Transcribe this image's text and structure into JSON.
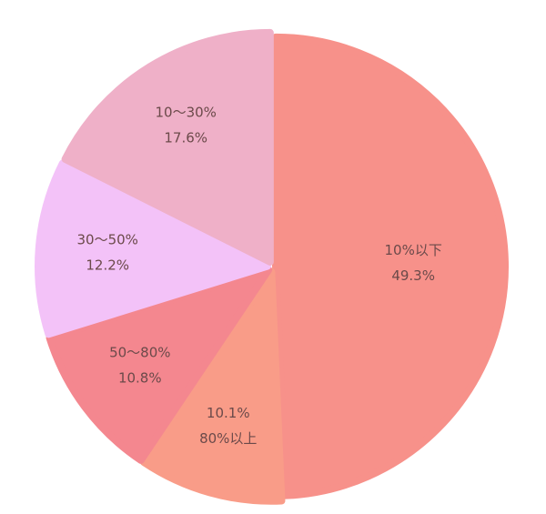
{
  "chart_data": {
    "type": "pie",
    "categories": [
      "10%以下",
      "80%以上",
      "50〜80%",
      "30〜50%",
      "10〜30%"
    ],
    "values": [
      49.3,
      10.1,
      10.8,
      12.2,
      17.6
    ],
    "value_labels": [
      "49.3%",
      "10.1%",
      "10.8%",
      "12.2%",
      "17.6%"
    ],
    "colors": [
      "#f7918a",
      "#f99c88",
      "#f4878f",
      "#f3c2f8",
      "#efb0c8"
    ]
  }
}
